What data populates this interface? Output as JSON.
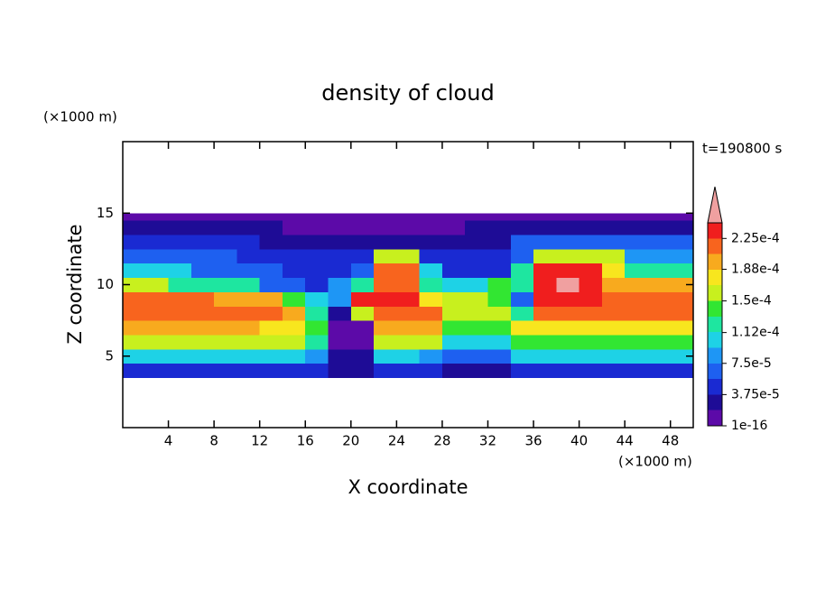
{
  "chart_data": {
    "type": "contour",
    "title": "density of cloud",
    "x_label": "X coordinate",
    "y_label": "Z coordinate",
    "x_unit": "(×1000 m)",
    "y_unit": "(×1000 m)",
    "time_label": "t=190800 s",
    "xlim": [
      0,
      50
    ],
    "ylim": [
      0,
      20
    ],
    "xticks": [
      4,
      8,
      12,
      16,
      20,
      24,
      28,
      32,
      36,
      40,
      44,
      48
    ],
    "yticks": [
      5,
      10,
      15
    ],
    "xbins": [
      0,
      2,
      4,
      6,
      8,
      10,
      12,
      14,
      16,
      18,
      20,
      22,
      24,
      26,
      28,
      30,
      32,
      34,
      36,
      38,
      40,
      42,
      44,
      46,
      48,
      50
    ],
    "ybins": [
      3.5,
      4.5,
      5.5,
      6.5,
      7.5,
      8.5,
      9.5,
      10.5,
      11.5,
      12.5,
      13.5,
      14.5,
      15
    ],
    "z": [
      [
        4.7e-05,
        4.7e-05,
        4.7e-05,
        4.7e-05,
        4.7e-05,
        4.7e-05,
        4.7e-05,
        4.7e-05,
        4.7e-05,
        2.8e-05,
        2.8e-05,
        4.7e-05,
        4.7e-05,
        4.7e-05,
        2.8e-05,
        2.8e-05,
        2.8e-05,
        4.7e-05,
        4.7e-05,
        4.7e-05,
        4.7e-05,
        4.7e-05,
        4.7e-05,
        4.7e-05,
        4.7e-05
      ],
      [
        0.000103,
        0.000103,
        0.000103,
        0.000103,
        0.000103,
        0.000103,
        0.000103,
        0.000103,
        8.4e-05,
        2.8e-05,
        2.8e-05,
        0.000103,
        0.000103,
        8.4e-05,
        6.6e-05,
        6.6e-05,
        6.6e-05,
        0.000103,
        0.000103,
        0.000103,
        0.000103,
        0.000103,
        0.000103,
        0.000103,
        0.000103
      ],
      [
        0.000159,
        0.000159,
        0.000159,
        0.000159,
        0.000159,
        0.000159,
        0.000159,
        0.000159,
        0.000122,
        1e-05,
        1e-05,
        0.000159,
        0.000159,
        0.000159,
        0.000103,
        0.000103,
        0.000103,
        0.00014,
        0.00014,
        0.00014,
        0.00014,
        0.00014,
        0.00014,
        0.00014,
        0.00014
      ],
      [
        0.000197,
        0.000197,
        0.000197,
        0.000197,
        0.000197,
        0.000197,
        0.000178,
        0.000178,
        0.00014,
        1e-05,
        1e-05,
        0.000197,
        0.000197,
        0.000197,
        0.00014,
        0.00014,
        0.00014,
        0.000178,
        0.000178,
        0.000178,
        0.000178,
        0.000178,
        0.000178,
        0.000178,
        0.000178
      ],
      [
        0.000216,
        0.000216,
        0.000216,
        0.000216,
        0.000216,
        0.000216,
        0.000216,
        0.000197,
        0.000122,
        2.8e-05,
        0.000159,
        0.000216,
        0.000216,
        0.000216,
        0.000159,
        0.000159,
        0.000159,
        0.000122,
        0.000216,
        0.000216,
        0.000216,
        0.000216,
        0.000216,
        0.000216,
        0.000216
      ],
      [
        0.000216,
        0.000216,
        0.000216,
        0.000216,
        0.000197,
        0.000197,
        0.000197,
        0.00014,
        0.000103,
        8.4e-05,
        0.000234,
        0.000234,
        0.000234,
        0.000178,
        0.000159,
        0.000159,
        0.00014,
        6.6e-05,
        0.000234,
        0.000234,
        0.000234,
        0.000216,
        0.000216,
        0.000216,
        0.000216
      ],
      [
        0.000159,
        0.000159,
        0.000122,
        0.000122,
        0.000122,
        0.000122,
        6.6e-05,
        6.6e-05,
        4.7e-05,
        8.4e-05,
        0.000122,
        0.000216,
        0.000216,
        0.000122,
        0.000103,
        0.000103,
        0.00014,
        0.000122,
        0.000234,
        0.00025,
        0.000234,
        0.000197,
        0.000197,
        0.000197,
        0.000197
      ],
      [
        0.000103,
        0.000103,
        0.000103,
        6.6e-05,
        6.6e-05,
        6.6e-05,
        6.6e-05,
        4.7e-05,
        4.7e-05,
        4.7e-05,
        6.6e-05,
        0.000216,
        0.000216,
        0.000103,
        4.7e-05,
        4.7e-05,
        4.7e-05,
        0.000122,
        0.000234,
        0.000234,
        0.000234,
        0.000178,
        0.000122,
        0.000122,
        0.000122
      ],
      [
        6.6e-05,
        6.6e-05,
        6.6e-05,
        6.6e-05,
        6.6e-05,
        4.7e-05,
        4.7e-05,
        4.7e-05,
        4.7e-05,
        4.7e-05,
        4.7e-05,
        0.000159,
        0.000159,
        4.7e-05,
        4.7e-05,
        4.7e-05,
        4.7e-05,
        6.6e-05,
        0.000159,
        0.000159,
        0.000159,
        0.000159,
        8.4e-05,
        8.4e-05,
        8.4e-05
      ],
      [
        4.7e-05,
        4.7e-05,
        4.7e-05,
        4.7e-05,
        4.7e-05,
        4.7e-05,
        2.8e-05,
        2.8e-05,
        2.8e-05,
        2.8e-05,
        2.8e-05,
        2.8e-05,
        2.8e-05,
        2.8e-05,
        2.8e-05,
        2.8e-05,
        2.8e-05,
        6.6e-05,
        6.6e-05,
        6.6e-05,
        6.6e-05,
        6.6e-05,
        6.6e-05,
        6.6e-05,
        6.6e-05
      ],
      [
        2.8e-05,
        2.8e-05,
        2.8e-05,
        2.8e-05,
        2.8e-05,
        2.8e-05,
        2.8e-05,
        1e-05,
        1e-05,
        1e-05,
        1e-05,
        1e-05,
        1e-05,
        1e-05,
        1e-05,
        2.8e-05,
        2.8e-05,
        2.8e-05,
        2.8e-05,
        2.8e-05,
        2.8e-05,
        2.8e-05,
        2.8e-05,
        2.8e-05,
        2.8e-05
      ],
      [
        1e-05,
        1e-05,
        1e-05,
        1e-05,
        1e-05,
        1e-05,
        1e-05,
        1e-05,
        1e-05,
        1e-05,
        1e-05,
        1e-05,
        1e-05,
        1e-05,
        1e-05,
        1e-05,
        1e-05,
        1e-05,
        1e-05,
        1e-05,
        1e-05,
        1e-05,
        1e-05,
        1e-05,
        1e-05
      ]
    ],
    "levels": [
      1e-16,
      1.875e-05,
      3.75e-05,
      5.625e-05,
      7.5e-05,
      9.375e-05,
      0.0001125,
      0.00013125,
      0.00015,
      0.00016875,
      0.0001875,
      0.00020625,
      0.000225,
      0.00024375
    ],
    "colors": [
      "#5c0aa8",
      "#1e0c96",
      "#1a2ad2",
      "#1e60f0",
      "#1e96f5",
      "#1ed2e6",
      "#1ee6a0",
      "#32e632",
      "#c8f01e",
      "#f8e61e",
      "#f8aa1e",
      "#f8641e",
      "#f01e1e"
    ],
    "extend_color": "#f0a0a0",
    "colorbar_ticks": [
      {
        "value": 1e-16,
        "label": "1e-16"
      },
      {
        "value": 3.75e-05,
        "label": "3.75e-5"
      },
      {
        "value": 7.5e-05,
        "label": "7.5e-5"
      },
      {
        "value": 0.000112,
        "label": "1.12e-4"
      },
      {
        "value": 0.00015,
        "label": "1.5e-4"
      },
      {
        "value": 0.000188,
        "label": "1.88e-4"
      },
      {
        "value": 0.000225,
        "label": "2.25e-4"
      }
    ]
  }
}
